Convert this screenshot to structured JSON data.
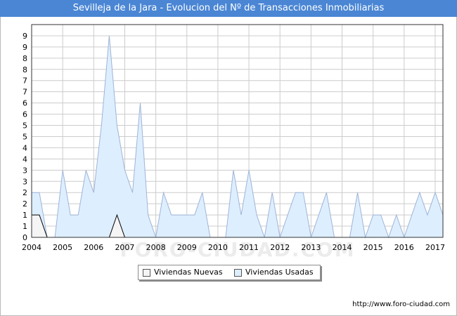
{
  "header": {
    "title": "Sevilleja de la Jara - Evolucion del Nº de Transacciones Inmobiliarias"
  },
  "footer": {
    "source": "http://www.foro-ciudad.com"
  },
  "watermark": "FORO-CIUDAD.COM",
  "colors": {
    "title_bg": "#4a86d4",
    "nuevas_fill": "#f5f5f5",
    "nuevas_line": "#000000",
    "usadas_fill": "#ddeeff",
    "usadas_line": "#9fb4d6",
    "grid": "#cccccc"
  },
  "chart_data": {
    "type": "area",
    "title": "Sevilleja de la Jara - Evolucion del Nº de Transacciones Inmobiliarias",
    "xlabel": "",
    "ylabel": "",
    "xlim": [
      2004,
      2017.25
    ],
    "ylim": [
      0,
      19
    ],
    "y_ticks": [
      {
        "value": 0,
        "label": "0"
      },
      {
        "value": 1,
        "label": "1"
      },
      {
        "value": 2,
        "label": "1"
      },
      {
        "value": 3,
        "label": "2"
      },
      {
        "value": 4,
        "label": "2"
      },
      {
        "value": 5,
        "label": "3"
      },
      {
        "value": 6,
        "label": "3"
      },
      {
        "value": 7,
        "label": "4"
      },
      {
        "value": 8,
        "label": "4"
      },
      {
        "value": 9,
        "label": "5"
      },
      {
        "value": 10,
        "label": "5"
      },
      {
        "value": 11,
        "label": "6"
      },
      {
        "value": 12,
        "label": "6"
      },
      {
        "value": 13,
        "label": "7"
      },
      {
        "value": 14,
        "label": "7"
      },
      {
        "value": 15,
        "label": "8"
      },
      {
        "value": 16,
        "label": "8"
      },
      {
        "value": 17,
        "label": "9"
      },
      {
        "value": 18,
        "label": "9"
      }
    ],
    "x_ticks": [
      {
        "value": 2004,
        "label": "2004"
      },
      {
        "value": 2005,
        "label": "2005"
      },
      {
        "value": 2006,
        "label": "2006"
      },
      {
        "value": 2007,
        "label": "2007"
      },
      {
        "value": 2008,
        "label": "2008"
      },
      {
        "value": 2009,
        "label": "2009"
      },
      {
        "value": 2010,
        "label": "2010"
      },
      {
        "value": 2011,
        "label": "2011"
      },
      {
        "value": 2012,
        "label": "2012"
      },
      {
        "value": 2013,
        "label": "2013"
      },
      {
        "value": 2014,
        "label": "2014"
      },
      {
        "value": 2015,
        "label": "2015"
      },
      {
        "value": 2016,
        "label": "2016"
      },
      {
        "value": 2017,
        "label": "2017"
      }
    ],
    "grid": true,
    "legend_position": "bottom-center",
    "series": [
      {
        "name": "Viviendas Nuevas",
        "x": [
          2004,
          2004.25,
          2004.5,
          2004.75,
          2005,
          2005.25,
          2005.5,
          2005.75,
          2006,
          2006.25,
          2006.5,
          2006.75,
          2007,
          2007.25,
          2007.5,
          2007.75,
          2008,
          2008.25,
          2008.5,
          2008.75,
          2009,
          2009.25,
          2009.5,
          2009.75,
          2010,
          2010.25,
          2010.5,
          2010.75,
          2011,
          2011.25,
          2011.5,
          2011.75,
          2012,
          2012.25,
          2012.5,
          2012.75,
          2013,
          2013.25,
          2013.5,
          2013.75,
          2014,
          2014.25,
          2014.5,
          2014.75,
          2015,
          2015.25,
          2015.5,
          2015.75,
          2016,
          2016.25,
          2016.5,
          2016.75,
          2017,
          2017.25
        ],
        "values": [
          2,
          2,
          0,
          0,
          0,
          0,
          0,
          0,
          0,
          0,
          0,
          2,
          0,
          0,
          0,
          0,
          0,
          0,
          0,
          0,
          0,
          0,
          0,
          0,
          0,
          0,
          0,
          0,
          0,
          0,
          0,
          0,
          0,
          0,
          0,
          0,
          0,
          0,
          0,
          0,
          0,
          0,
          0,
          0,
          0,
          0,
          0,
          0,
          0,
          0,
          0,
          0,
          0,
          0
        ]
      },
      {
        "name": "Viviendas Usadas",
        "x": [
          2004,
          2004.25,
          2004.5,
          2004.75,
          2005,
          2005.25,
          2005.5,
          2005.75,
          2006,
          2006.25,
          2006.5,
          2006.75,
          2007,
          2007.25,
          2007.5,
          2007.75,
          2008,
          2008.25,
          2008.5,
          2008.75,
          2009,
          2009.25,
          2009.5,
          2009.75,
          2010,
          2010.25,
          2010.5,
          2010.75,
          2011,
          2011.25,
          2011.5,
          2011.75,
          2012,
          2012.25,
          2012.5,
          2012.75,
          2013,
          2013.25,
          2013.5,
          2013.75,
          2014,
          2014.25,
          2014.5,
          2014.75,
          2015,
          2015.25,
          2015.5,
          2015.75,
          2016,
          2016.25,
          2016.5,
          2016.75,
          2017,
          2017.25
        ],
        "values": [
          4,
          4,
          0,
          0,
          6,
          2,
          2,
          6,
          4,
          10,
          18,
          10,
          6,
          4,
          12,
          2,
          0,
          4,
          2,
          2,
          2,
          2,
          4,
          0,
          0,
          0,
          6,
          2,
          6,
          2,
          0,
          4,
          0,
          2,
          4,
          4,
          0,
          2,
          4,
          0,
          0,
          0,
          4,
          0,
          2,
          2,
          0,
          2,
          0,
          2,
          4,
          2,
          4,
          2
        ]
      }
    ]
  },
  "legend": {
    "items": [
      {
        "label": "Viviendas Nuevas",
        "color": "#f5f5f5"
      },
      {
        "label": "Viviendas Usadas",
        "color": "#ddeeff"
      }
    ]
  }
}
